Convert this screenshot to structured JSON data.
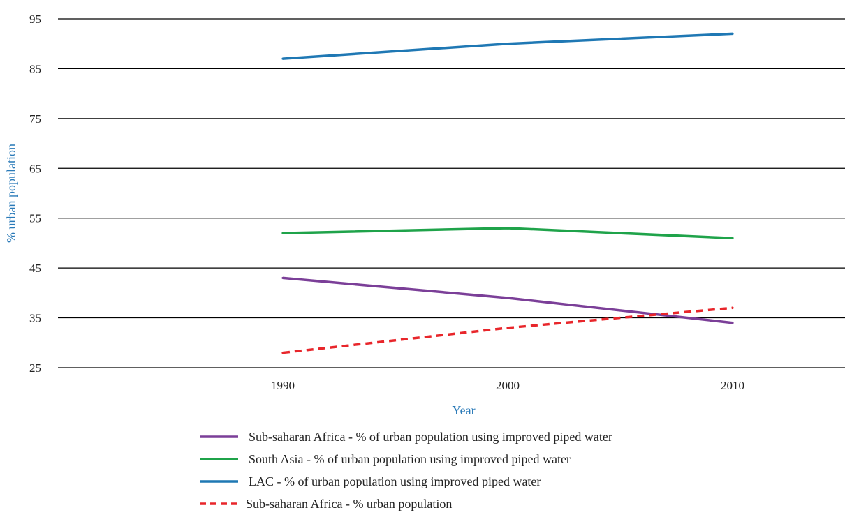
{
  "chart_data": {
    "type": "line",
    "title": "",
    "xlabel": "Year",
    "ylabel": "% urban population",
    "x": [
      1990,
      2000,
      2010
    ],
    "xlim": [
      1980,
      2015
    ],
    "ylim": [
      25,
      95
    ],
    "yticks": [
      25,
      35,
      45,
      55,
      65,
      75,
      85,
      95
    ],
    "grid": "horizontal",
    "legend_position": "bottom",
    "label_color": "#2A7AB8",
    "series": [
      {
        "name": "Sub-saharan Africa - % of urban population using improved piped water",
        "values": [
          43,
          39,
          34
        ],
        "color": "#7B3F98",
        "dashed": false
      },
      {
        "name": "South Asia - % of urban population using improved piped water",
        "values": [
          52,
          53,
          51
        ],
        "color": "#1FA34A",
        "dashed": false
      },
      {
        "name": "LAC - % of urban population using improved piped water",
        "values": [
          87,
          90,
          92
        ],
        "color": "#1F78B4",
        "dashed": false
      },
      {
        "name": "Sub-saharan Africa - % urban population",
        "values": [
          28,
          33,
          37
        ],
        "color": "#E8262B",
        "dashed": true
      }
    ]
  }
}
